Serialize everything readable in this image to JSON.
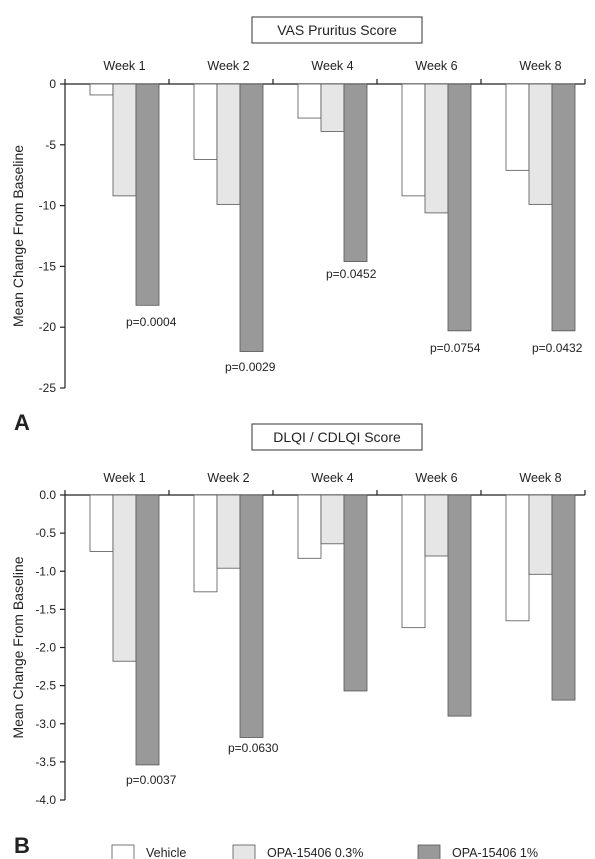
{
  "chart_data": [
    {
      "type": "bar",
      "panel_label": "A",
      "title": "VAS Pruritus Score",
      "ylabel": "Mean Change From Baseline",
      "xlabel": "",
      "categories": [
        "Week 1",
        "Week 2",
        "Week 4",
        "Week 6",
        "Week 8"
      ],
      "ylim": [
        -25,
        0
      ],
      "yticks": [
        0,
        -5,
        -10,
        -15,
        -20,
        -25
      ],
      "ytick_labels": [
        "0",
        "-5",
        "-10",
        "-15",
        "-20",
        "-25"
      ],
      "category_axis_position": "top",
      "grid": false,
      "series": [
        {
          "name": "Vehicle",
          "color": "#ffffff",
          "values": [
            -0.9,
            -6.2,
            -2.8,
            -9.2,
            -7.1
          ]
        },
        {
          "name": "OPA-15406 0.3%",
          "color": "#e6e6e6",
          "values": [
            -9.2,
            -9.9,
            -3.9,
            -10.6,
            -9.9
          ]
        },
        {
          "name": "OPA-15406 1%",
          "color": "#999999",
          "values": [
            -18.2,
            -22.0,
            -14.6,
            -20.3,
            -20.3
          ]
        }
      ],
      "annotations": [
        "p=0.0004",
        "p=0.0029",
        "p=0.0452",
        "p=0.0754",
        "p=0.0432"
      ]
    },
    {
      "type": "bar",
      "panel_label": "B",
      "title": "DLQI / CDLQI Score",
      "ylabel": "Mean Change From Baseline",
      "xlabel": "",
      "categories": [
        "Week 1",
        "Week 2",
        "Week 4",
        "Week 6",
        "Week 8"
      ],
      "ylim": [
        -4.0,
        0.0
      ],
      "yticks": [
        0.0,
        -0.5,
        -1.0,
        -1.5,
        -2.0,
        -2.5,
        -3.0,
        -3.5,
        -4.0
      ],
      "ytick_labels": [
        "0.0",
        "-0.5",
        "-1.0",
        "-1.5",
        "-2.0",
        "-2.5",
        "-3.0",
        "-3.5",
        "-4.0"
      ],
      "category_axis_position": "top",
      "grid": false,
      "series": [
        {
          "name": "Vehicle",
          "color": "#ffffff",
          "values": [
            -0.74,
            -1.27,
            -0.83,
            -1.74,
            -1.65
          ]
        },
        {
          "name": "OPA-15406 0.3%",
          "color": "#e6e6e6",
          "values": [
            -2.18,
            -0.96,
            -0.64,
            -0.8,
            -1.04
          ]
        },
        {
          "name": "OPA-15406 1%",
          "color": "#999999",
          "values": [
            -3.54,
            -3.18,
            -2.57,
            -2.9,
            -2.69
          ]
        }
      ],
      "annotations": [
        "p=0.0037",
        "p=0.0630"
      ]
    }
  ],
  "legend": {
    "placement": "bottom",
    "items": [
      {
        "label": "Vehicle",
        "color": "#ffffff"
      },
      {
        "label": "OPA-15406 0.3%",
        "color": "#e6e6e6"
      },
      {
        "label": "OPA-15406 1%",
        "color": "#999999"
      }
    ]
  }
}
